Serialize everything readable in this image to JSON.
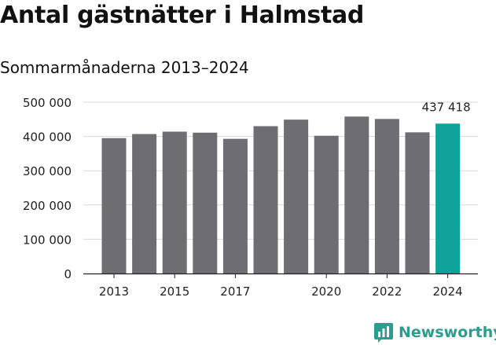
{
  "header": {
    "title": "Antal gästnätter i Halmstad",
    "subtitle": "Sommarmånaderna 2013–2024"
  },
  "branding": {
    "logo_icon": "newsworthy-chart-icon",
    "name": "Newsworthy",
    "color": "#2a9d8f"
  },
  "chart_data": {
    "type": "bar",
    "title": "Antal gästnätter i Halmstad",
    "subtitle": "Sommarmånaderna 2013–2024",
    "categories": [
      "2013",
      "2014",
      "2015",
      "2016",
      "2017",
      "2018",
      "2019",
      "2020",
      "2021",
      "2022",
      "2023",
      "2024"
    ],
    "values": [
      395000,
      407000,
      414000,
      411000,
      393000,
      430000,
      449000,
      402000,
      458000,
      451000,
      412000,
      437418
    ],
    "highlight_index": 11,
    "highlight_label": "437 418",
    "x_tick_labels": [
      {
        "category": "2013",
        "label": "2013"
      },
      {
        "category": "2015",
        "label": "2015"
      },
      {
        "category": "2017",
        "label": "2017"
      },
      {
        "category": "2020",
        "label": "2020"
      },
      {
        "category": "2022",
        "label": "2022"
      },
      {
        "category": "2024",
        "label": "2024"
      }
    ],
    "y_ticks": [
      0,
      100000,
      200000,
      300000,
      400000,
      500000
    ],
    "y_tick_labels": [
      "0",
      "100 000",
      "200 000",
      "300 000",
      "400 000",
      "500 000"
    ],
    "ylim": [
      0,
      500000
    ],
    "xlabel": "",
    "ylabel": "",
    "grid": true,
    "colors": {
      "bar": "#6e6d72",
      "highlight": "#0ea39a",
      "grid": "#d9d9d9",
      "axis": "#222222",
      "text": "#222222"
    }
  }
}
